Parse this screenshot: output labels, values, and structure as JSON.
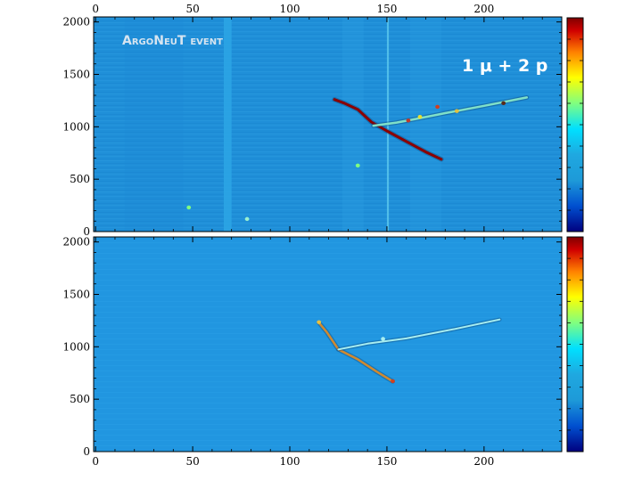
{
  "chart_data": [
    {
      "type": "heatmap",
      "panel": "top",
      "title": "",
      "xlabel": "",
      "ylabel": "",
      "xlim": [
        -1,
        240
      ],
      "ylim": [
        0,
        2048
      ],
      "x_ticks": [
        0,
        50,
        100,
        150,
        200
      ],
      "y_ticks": [
        0,
        500,
        1000,
        1500,
        2000
      ],
      "grid": false,
      "annotations": {
        "event_title": "ArgoNeuT event",
        "event_label": "1 μ + 2 p"
      },
      "colorscale": [
        "#00007f",
        "#0050d0",
        "#1e9ad8",
        "#00e0ff",
        "#80ff80",
        "#ffff00",
        "#ff8000",
        "#d00000",
        "#800000"
      ],
      "tracks": [
        {
          "name": "muon",
          "color": "#8b0000",
          "width": 3,
          "points": [
            [
              123,
              1260
            ],
            [
              128,
              1225
            ],
            [
              135,
              1165
            ],
            [
              142,
              1045
            ],
            [
              150,
              960
            ],
            [
              160,
              860
            ],
            [
              170,
              760
            ],
            [
              178,
              690
            ]
          ]
        },
        {
          "name": "proton",
          "color": "#7fe0c8",
          "width": 2.5,
          "points": [
            [
              143,
              1010
            ],
            [
              155,
              1040
            ],
            [
              165,
              1075
            ],
            [
              180,
              1130
            ],
            [
              200,
              1200
            ],
            [
              222,
              1280
            ]
          ]
        }
      ],
      "hits": [
        {
          "x": 161,
          "y": 1060,
          "color": "#c0392b"
        },
        {
          "x": 167,
          "y": 1095,
          "color": "#e8e030"
        },
        {
          "x": 176,
          "y": 1190,
          "color": "#d04020"
        },
        {
          "x": 186,
          "y": 1150,
          "color": "#e0c040"
        },
        {
          "x": 210,
          "y": 1225,
          "color": "#5b2a1a"
        },
        {
          "x": 48,
          "y": 230,
          "color": "#80ff80"
        },
        {
          "x": 78,
          "y": 120,
          "color": "#9af0d0"
        },
        {
          "x": 135,
          "y": 630,
          "color": "#80ff80"
        }
      ]
    },
    {
      "type": "heatmap",
      "panel": "bottom",
      "title": "",
      "xlabel": "",
      "ylabel": "",
      "xlim": [
        -1,
        240
      ],
      "ylim": [
        0,
        2048
      ],
      "x_ticks": [
        0,
        50,
        100,
        150,
        200
      ],
      "y_ticks": [
        0,
        500,
        1000,
        1500,
        2000
      ],
      "grid": false,
      "colorscale": [
        "#00007f",
        "#0050d0",
        "#1e9ad8",
        "#00e0ff",
        "#80ff80",
        "#ffff00",
        "#ff8000",
        "#d00000",
        "#800000"
      ],
      "tracks": [
        {
          "name": "muon",
          "color": "#d08a30",
          "width": 2.5,
          "points": [
            [
              115,
              1230
            ],
            [
              119,
              1140
            ],
            [
              125,
              975
            ],
            [
              135,
              880
            ],
            [
              145,
              760
            ],
            [
              153,
              670
            ]
          ]
        },
        {
          "name": "proton",
          "color": "#a8eef0",
          "width": 2,
          "points": [
            [
              125,
              975
            ],
            [
              140,
              1030
            ],
            [
              160,
              1080
            ],
            [
              185,
              1170
            ],
            [
              208,
              1260
            ]
          ]
        }
      ],
      "hits": [
        {
          "x": 115,
          "y": 1235,
          "color": "#e8c040"
        },
        {
          "x": 148,
          "y": 1075,
          "color": "#a8eef0"
        },
        {
          "x": 153,
          "y": 672,
          "color": "#d04020"
        }
      ]
    }
  ]
}
